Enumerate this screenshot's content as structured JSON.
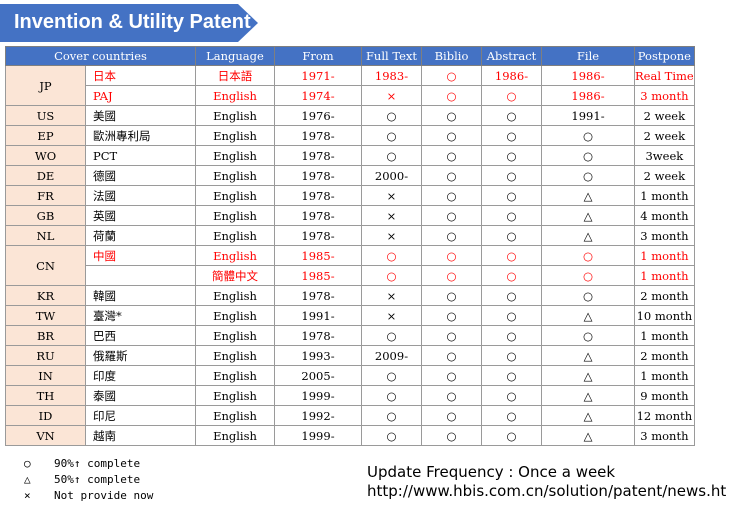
{
  "title": "Invention & Utility Patent",
  "colors": {
    "banner": "#4472c4",
    "header": "#4472c4",
    "code_bg": "#fbe5d6",
    "highlight": "#ff0000"
  },
  "table": {
    "headers": [
      "Cover countries",
      "Language",
      "From",
      "Full Text",
      "Biblio",
      "Abstract",
      "File",
      "Postpone"
    ],
    "groups": [
      {
        "code": "JP",
        "rows": [
          {
            "name": "日本",
            "language": "日本語",
            "from": "1971-",
            "full_text": "1983-",
            "biblio": "○",
            "abstract": "1986-",
            "file": "1986-",
            "postpone": "Real Time",
            "red": true
          },
          {
            "name": "PAJ",
            "language": "English",
            "from": "1974-",
            "full_text": "×",
            "biblio": "○",
            "abstract": "○",
            "file": "1986-",
            "postpone": "3 month",
            "red": true
          }
        ]
      },
      {
        "code": "US",
        "rows": [
          {
            "name": "美國",
            "language": "English",
            "from": "1976-",
            "full_text": "○",
            "biblio": "○",
            "abstract": "○",
            "file": "1991-",
            "postpone": "2 week",
            "red": false
          }
        ]
      },
      {
        "code": "EP",
        "rows": [
          {
            "name": "歐洲專利局",
            "language": "English",
            "from": "1978-",
            "full_text": "○",
            "biblio": "○",
            "abstract": "○",
            "file": "○",
            "postpone": "2 week",
            "red": false
          }
        ]
      },
      {
        "code": "WO",
        "rows": [
          {
            "name": "PCT",
            "language": "English",
            "from": "1978-",
            "full_text": "○",
            "biblio": "○",
            "abstract": "○",
            "file": "○",
            "postpone": "3week",
            "red": false
          }
        ]
      },
      {
        "code": "DE",
        "rows": [
          {
            "name": "德國",
            "language": "English",
            "from": "1978-",
            "full_text": "2000-",
            "biblio": "○",
            "abstract": "○",
            "file": "○",
            "postpone": "2 week",
            "red": false
          }
        ]
      },
      {
        "code": "FR",
        "rows": [
          {
            "name": "法國",
            "language": "English",
            "from": "1978-",
            "full_text": "×",
            "biblio": "○",
            "abstract": "○",
            "file": "△",
            "postpone": "1 month",
            "red": false
          }
        ]
      },
      {
        "code": "GB",
        "rows": [
          {
            "name": "英國",
            "language": "English",
            "from": "1978-",
            "full_text": "×",
            "biblio": "○",
            "abstract": "○",
            "file": "△",
            "postpone": "4 month",
            "red": false
          }
        ]
      },
      {
        "code": "NL",
        "rows": [
          {
            "name": "荷蘭",
            "language": "English",
            "from": "1978-",
            "full_text": "×",
            "biblio": "○",
            "abstract": "○",
            "file": "△",
            "postpone": "3 month",
            "red": false
          }
        ]
      },
      {
        "code": "CN",
        "rows": [
          {
            "name": "中國",
            "language": "English",
            "from": "1985-",
            "full_text": "○",
            "biblio": "○",
            "abstract": "○",
            "file": "○",
            "postpone": "1 month",
            "red": true
          },
          {
            "name": "",
            "language": "簡體中文",
            "from": "1985-",
            "full_text": "○",
            "biblio": "○",
            "abstract": "○",
            "file": "○",
            "postpone": "1 month",
            "red": true
          }
        ]
      },
      {
        "code": "KR",
        "rows": [
          {
            "name": "韓國",
            "language": "English",
            "from": "1978-",
            "full_text": "×",
            "biblio": "○",
            "abstract": "○",
            "file": "○",
            "postpone": "2 month",
            "red": false
          }
        ]
      },
      {
        "code": "TW",
        "rows": [
          {
            "name": "臺灣*",
            "language": "English",
            "from": "1991-",
            "full_text": "×",
            "biblio": "○",
            "abstract": "○",
            "file": "△",
            "postpone": "10 month",
            "red": false
          }
        ]
      },
      {
        "code": "BR",
        "rows": [
          {
            "name": "巴西",
            "language": "English",
            "from": "1978-",
            "full_text": "○",
            "biblio": "○",
            "abstract": "○",
            "file": "○",
            "postpone": "1 month",
            "red": false
          }
        ]
      },
      {
        "code": "RU",
        "rows": [
          {
            "name": "俄羅斯",
            "language": "English",
            "from": "1993-",
            "full_text": "2009-",
            "biblio": "○",
            "abstract": "○",
            "file": "△",
            "postpone": "2 month",
            "red": false
          }
        ]
      },
      {
        "code": "IN",
        "rows": [
          {
            "name": "印度",
            "language": "English",
            "from": "2005-",
            "full_text": "○",
            "biblio": "○",
            "abstract": "○",
            "file": "△",
            "postpone": "1 month",
            "red": false
          }
        ]
      },
      {
        "code": "TH",
        "rows": [
          {
            "name": "泰國",
            "language": "English",
            "from": "1999-",
            "full_text": "○",
            "biblio": "○",
            "abstract": "○",
            "file": "△",
            "postpone": "9 month",
            "red": false
          }
        ]
      },
      {
        "code": "ID",
        "rows": [
          {
            "name": "印尼",
            "language": "English",
            "from": "1992-",
            "full_text": "○",
            "biblio": "○",
            "abstract": "○",
            "file": "△",
            "postpone": "12 month",
            "red": false
          }
        ]
      },
      {
        "code": "VN",
        "rows": [
          {
            "name": "越南",
            "language": "English",
            "from": "1999-",
            "full_text": "○",
            "biblio": "○",
            "abstract": "○",
            "file": "△",
            "postpone": "3 month",
            "red": false
          }
        ]
      }
    ]
  },
  "legend": [
    {
      "symbol": "○",
      "text": "90%↑ complete"
    },
    {
      "symbol": "△",
      "text": "50%↑ complete"
    },
    {
      "symbol": "×",
      "text": "Not provide now"
    }
  ],
  "update_frequency": "Update Frequency : Once a week",
  "url": "http://www.hbis.com.cn/solution/patent/news.ht"
}
